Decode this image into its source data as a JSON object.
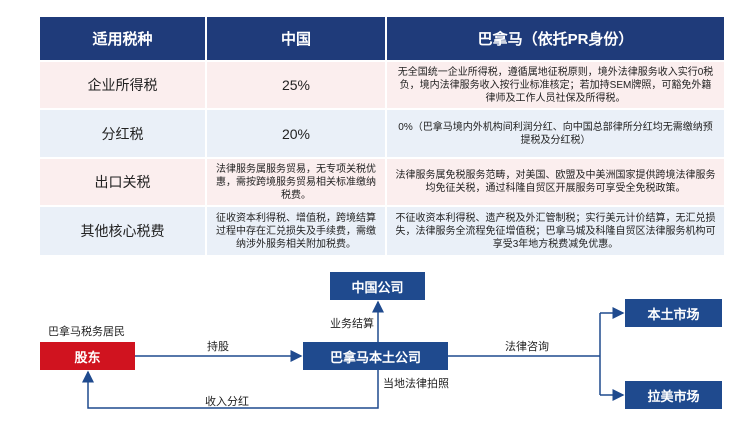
{
  "table": {
    "header": [
      "适用税种",
      "中国",
      "巴拿马（依托PR身份）"
    ],
    "rows": [
      [
        "企业所得税",
        "25%",
        "无全国统一企业所得税，遵循属地征税原则，境外法律服务收入实行0税负，境内法律服务收入按行业标准核定；若加持SEM牌照，可豁免外籍律师及工作人员社保及所得税。"
      ],
      [
        "分红税",
        "20%",
        "0%（巴拿马境内外机构间利润分红、向中国总部律所分红均无需缴纳预提税及分红税）"
      ],
      [
        "出口关税",
        "法律服务属服务贸易，无专项关税优惠，需按跨境服务贸易相关标准缴纳税费。",
        "法律服务属免税服务范畴，对美国、欧盟及中美洲国家提供跨境法律服务均免征关税，通过科隆自贸区开展服务可享受全免税政策。"
      ],
      [
        "其他核心税费",
        "征收资本利得税、增值税，跨境结算过程中存在汇兑损失及手续费，需缴纳涉外服务相关附加税费。",
        "不征收资本利得税、遗产税及外汇管制税；实行美元计价结算，无汇兑损失，法律服务全流程免征增值税；巴拿马城及科隆自贸区法律服务机构可享受3年地方税费减免优惠。"
      ]
    ]
  },
  "diagram": {
    "nodes": [
      "中国公司",
      "股东",
      "巴拿马本土公司",
      "本土市场",
      "拉美市场"
    ],
    "labels": [
      "巴拿马税务居民",
      "持股",
      "业务结算",
      "法律咨询",
      "当地法律拍照",
      "收入分红"
    ]
  }
}
